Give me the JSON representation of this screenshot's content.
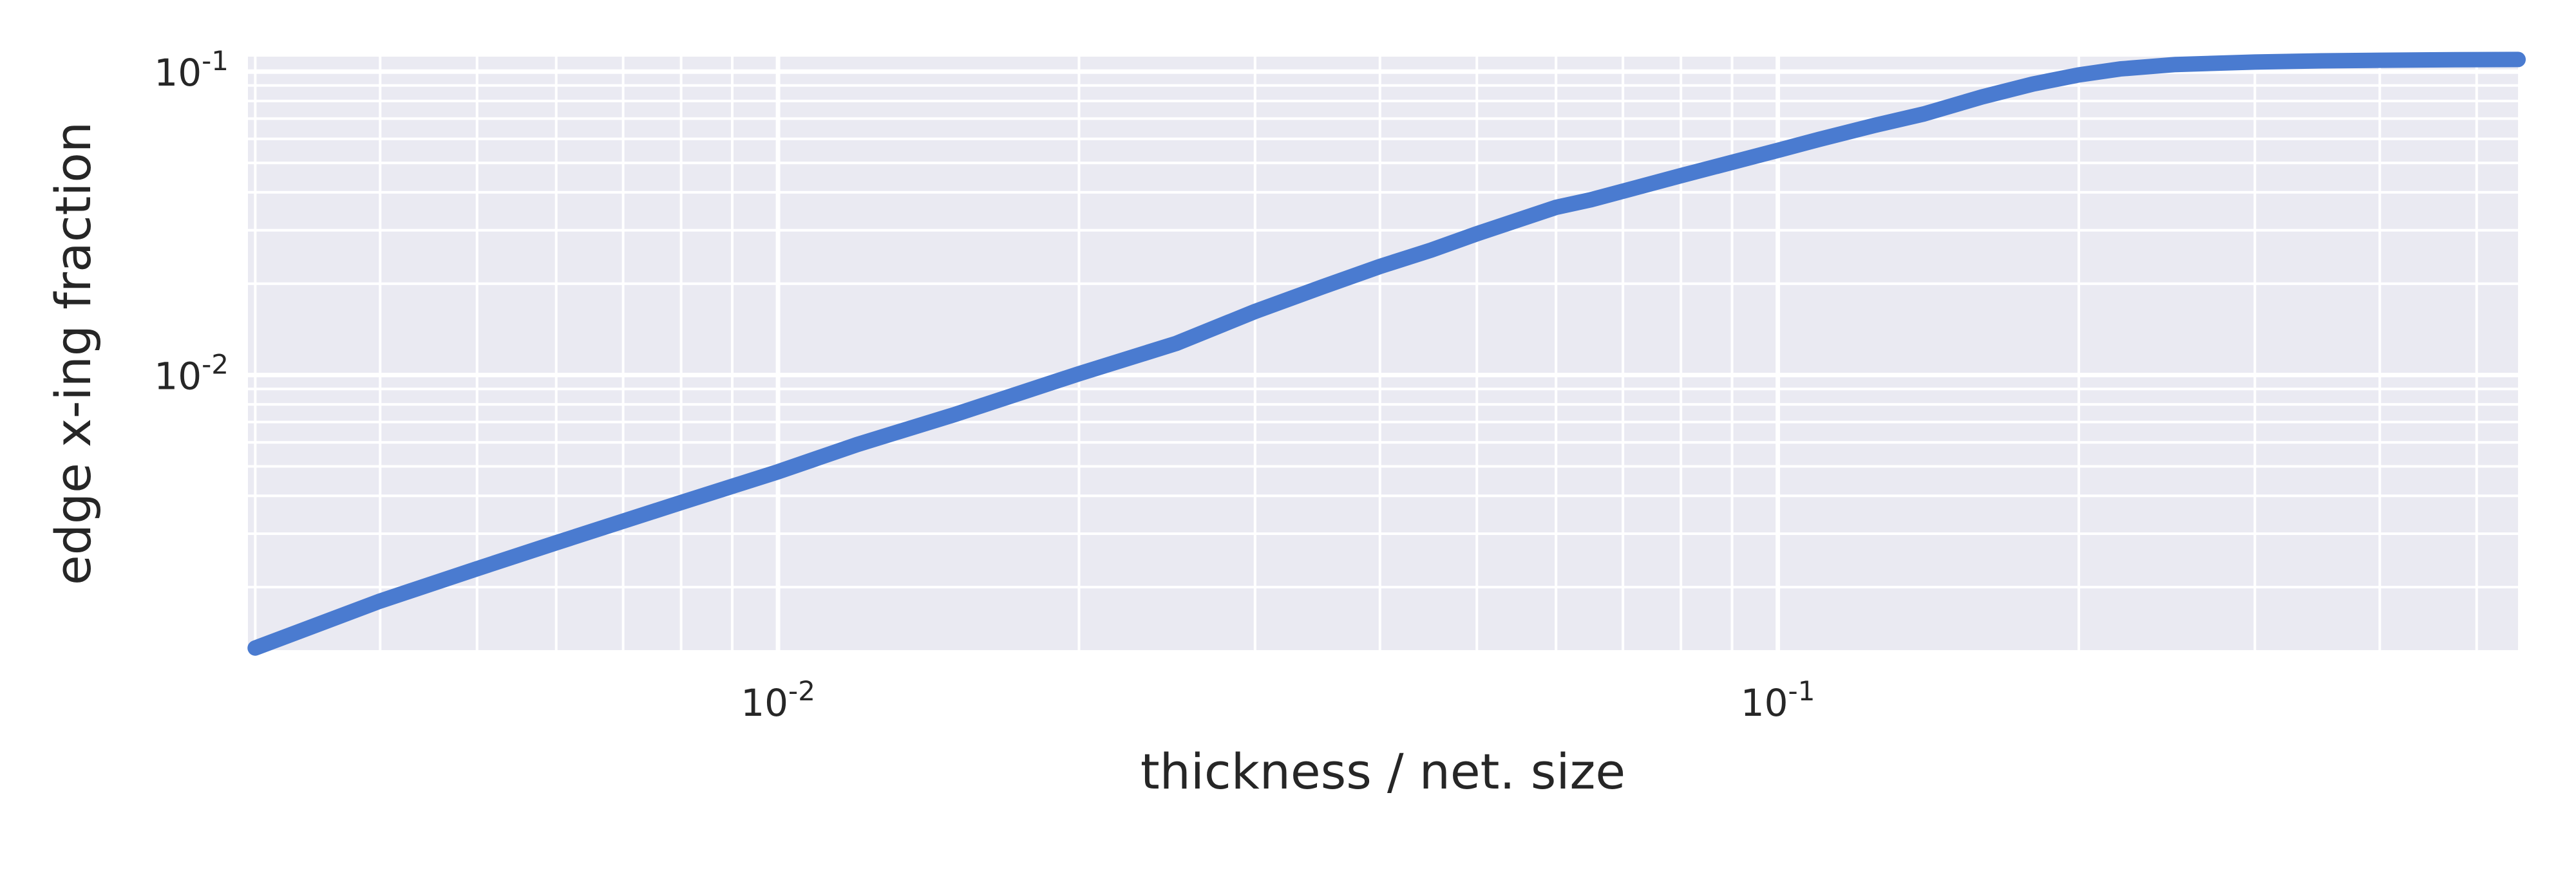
{
  "chart_data": {
    "type": "line",
    "xlabel": "thickness / net. size",
    "ylabel": "edge x-ing fraction",
    "xscale": "log",
    "yscale": "log",
    "xlim": [
      0.00295,
      0.55
    ],
    "ylim": [
      0.00124,
      0.112
    ],
    "grid": true,
    "colors": {
      "line": "#4a7bd0",
      "background": "#eaeaf2",
      "grid": "#ffffff",
      "text": "#262626"
    },
    "x_ticks": [
      {
        "value": 0.01,
        "base": "10",
        "exp": "-2"
      },
      {
        "value": 0.1,
        "base": "10",
        "exp": "-1"
      }
    ],
    "y_ticks": [
      {
        "value": 0.01,
        "base": "10",
        "exp": "-2"
      },
      {
        "value": 0.1,
        "base": "10",
        "exp": "-1"
      }
    ],
    "series": [
      {
        "x": [
          0.003,
          0.004,
          0.005,
          0.006,
          0.008,
          0.01,
          0.012,
          0.015,
          0.02,
          0.025,
          0.03,
          0.035,
          0.04,
          0.045,
          0.05,
          0.06,
          0.065,
          0.08,
          0.1,
          0.11,
          0.125,
          0.14,
          0.16,
          0.18,
          0.2,
          0.22,
          0.25,
          0.3,
          0.35,
          0.4,
          0.45,
          0.5,
          0.55
        ],
        "y": [
          0.00126,
          0.0018,
          0.0023,
          0.0028,
          0.0038,
          0.0048,
          0.0059,
          0.0074,
          0.0101,
          0.0127,
          0.0162,
          0.0195,
          0.0228,
          0.0258,
          0.0292,
          0.0357,
          0.0378,
          0.0454,
          0.055,
          0.0598,
          0.0665,
          0.0725,
          0.0825,
          0.091,
          0.0975,
          0.102,
          0.1055,
          0.1075,
          0.1085,
          0.109,
          0.1093,
          0.1095,
          0.1096
        ]
      }
    ]
  }
}
